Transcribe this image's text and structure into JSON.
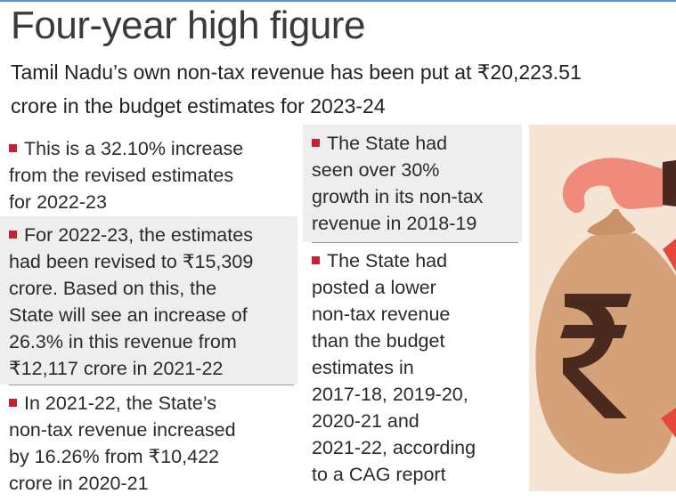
{
  "header": {
    "title": "Four-year high figure",
    "subtitle": [
      "Tamil Nadu’s own non-tax revenue has been put at ₹20,223.51",
      "crore in the budget estimates for 2023-24"
    ]
  },
  "left_column": [
    {
      "lines": [
        "This is a 32.10% increase",
        "from the revised estimates",
        "for 2022-23"
      ]
    },
    {
      "lines": [
        "For 2022-23, the estimates",
        "had been revised to ₹15,309",
        "crore. Based on this, the",
        "State will see an increase of",
        "26.3% in this revenue from",
        "₹12,117 crore in 2021-22"
      ]
    },
    {
      "lines": [
        "In 2021-22, the State’s",
        "non-tax revenue increased",
        "by 16.26% from ₹10,422",
        "crore in 2020-21"
      ]
    }
  ],
  "middle_column": [
    {
      "lines": [
        "The State had",
        "seen over 30%",
        "growth in its non-tax",
        "revenue in 2018-19"
      ]
    },
    {
      "lines": [
        "The State had",
        "posted a lower",
        "non-tax revenue",
        "than the budget",
        "estimates in",
        "2017-18, 2019-20,",
        "2020-21 and",
        "2021-22, according",
        "to a CAG report"
      ]
    }
  ]
}
